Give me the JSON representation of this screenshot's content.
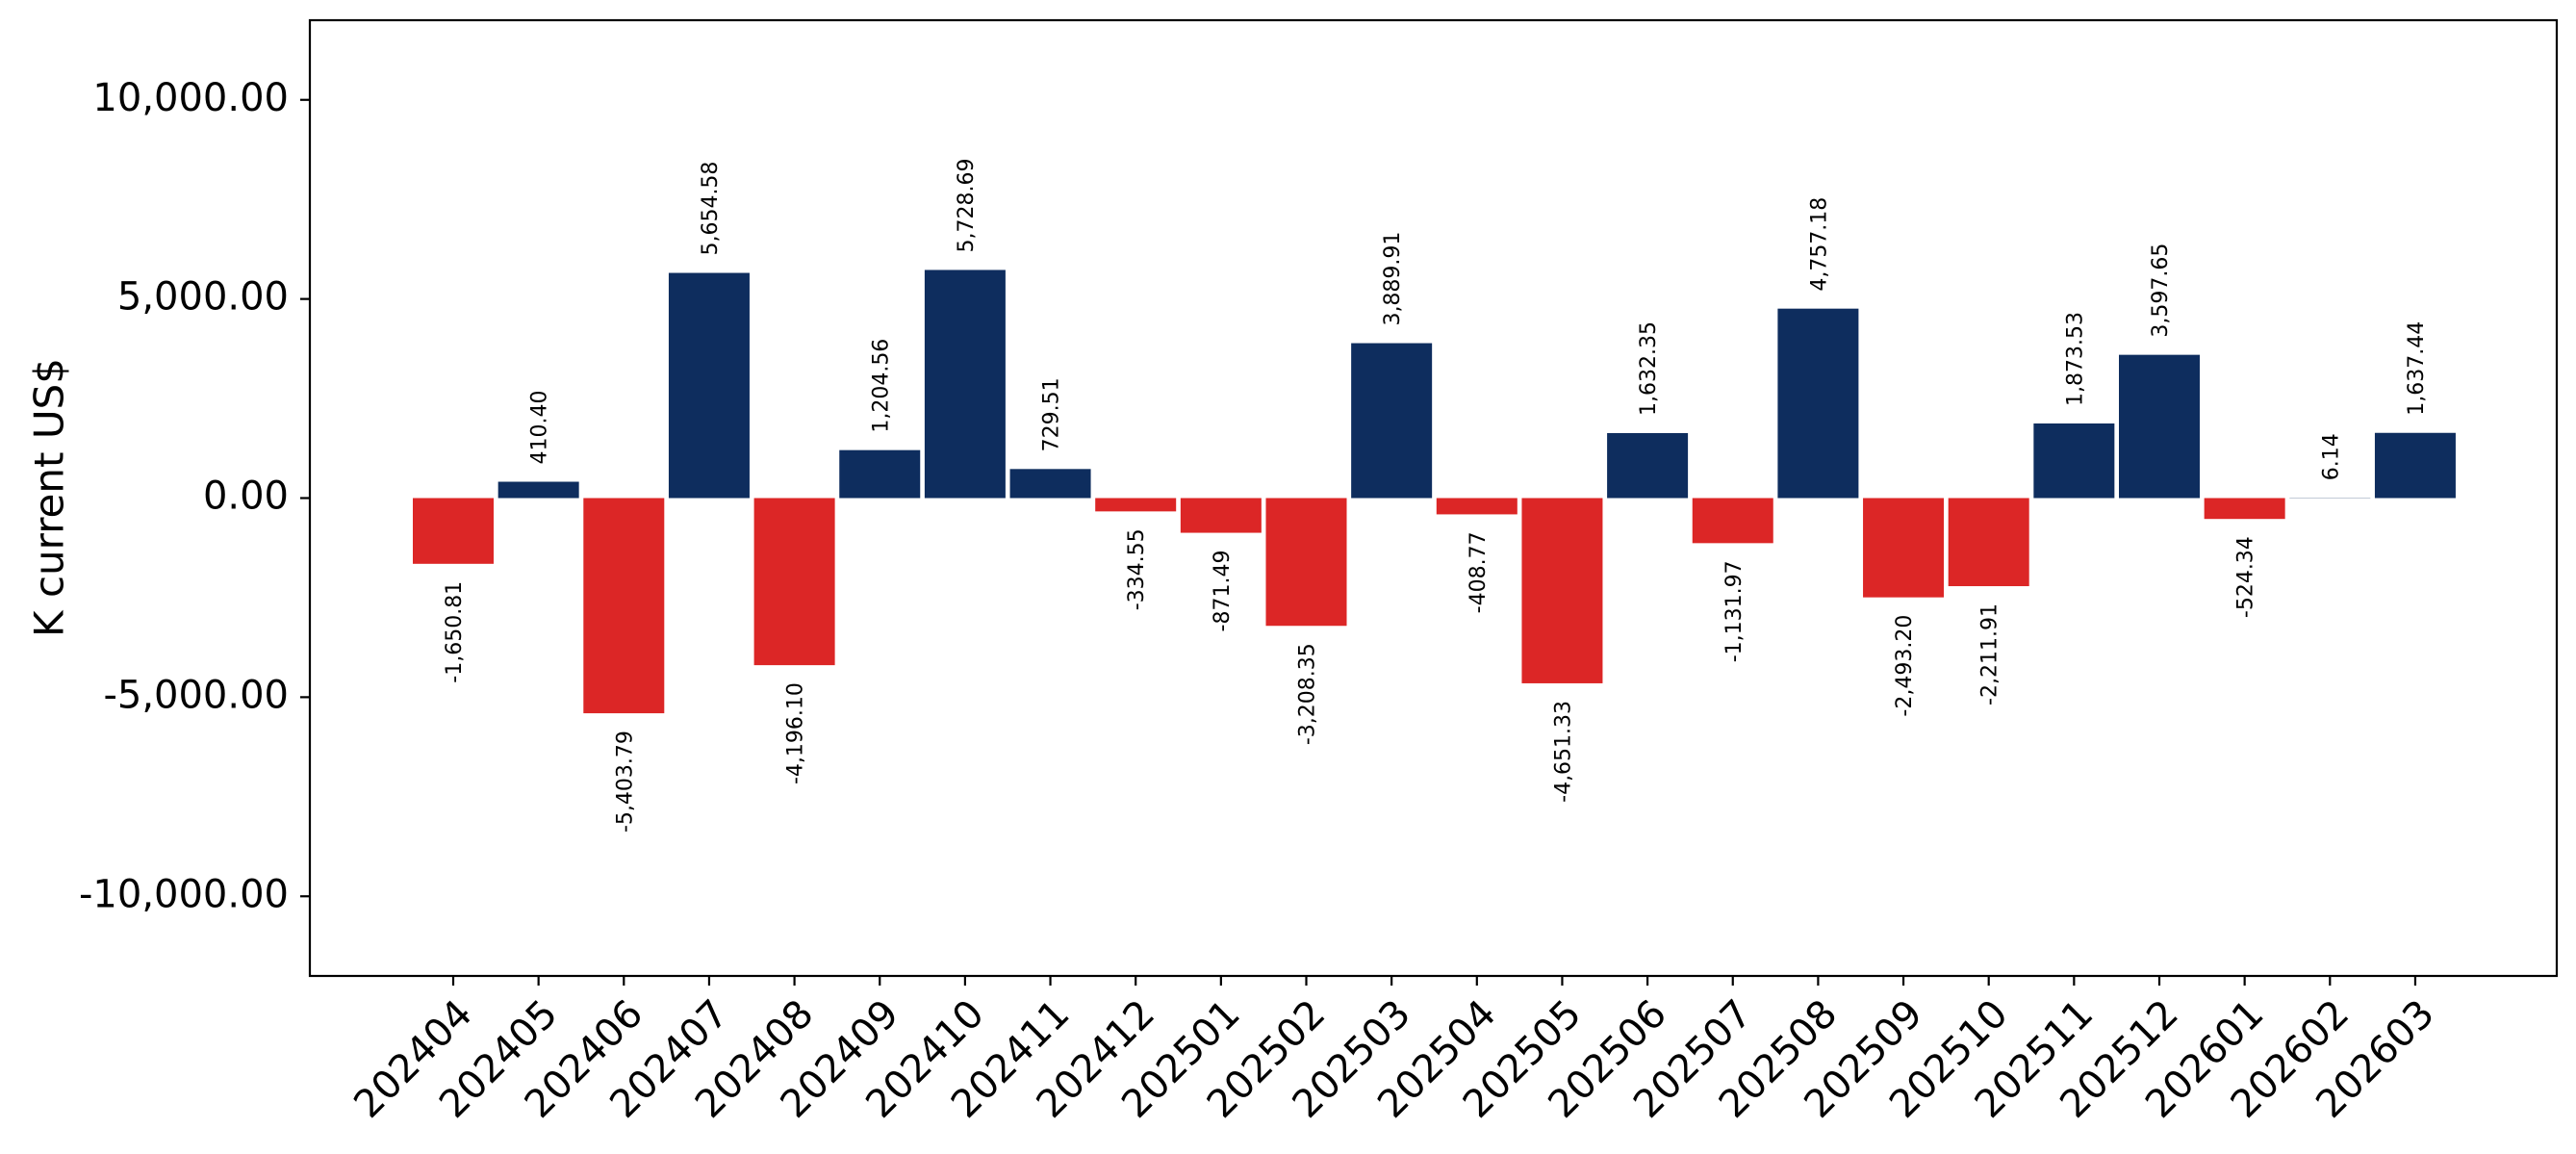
{
  "chart_data": {
    "type": "bar",
    "ylabel": "K current US$",
    "xlabel": "",
    "title": "",
    "ylim": [
      -12000,
      12000
    ],
    "yticks": [
      -10000,
      -5000,
      0,
      5000,
      10000
    ],
    "ytick_labels": [
      "-10,000.00",
      "-5,000.00",
      "0.00",
      "5,000.00",
      "10,000.00"
    ],
    "grid": false,
    "legend": "none",
    "colors": {
      "positive": "#0e2d5e",
      "negative": "#dc2626"
    },
    "categories": [
      "202404",
      "202405",
      "202406",
      "202407",
      "202408",
      "202409",
      "202410",
      "202411",
      "202412",
      "202501",
      "202502",
      "202503",
      "202504",
      "202505",
      "202506",
      "202507",
      "202508",
      "202509",
      "202510",
      "202511",
      "202512",
      "202601",
      "202602",
      "202603"
    ],
    "values": [
      -1650.81,
      410.4,
      -5403.79,
      5654.58,
      -4196.1,
      1204.56,
      5728.69,
      729.51,
      -334.55,
      -871.49,
      -3208.35,
      3889.91,
      -408.77,
      -4651.33,
      1632.35,
      -1131.97,
      4757.18,
      -2493.2,
      -2211.91,
      1873.53,
      3597.65,
      -524.34,
      6.14,
      1637.44
    ],
    "value_labels": [
      "-1,650.81",
      "410.40",
      "-5,403.79",
      "5,654.58",
      "-4,196.10",
      "1,204.56",
      "5,728.69",
      "729.51",
      "-334.55",
      "-871.49",
      "-3,208.35",
      "3,889.91",
      "-408.77",
      "-4,651.33",
      "1,632.35",
      "-1,131.97",
      "4,757.18",
      "-2,493.20",
      "-2,211.91",
      "1,873.53",
      "3,597.65",
      "-524.34",
      "6.14",
      "1,637.44"
    ]
  }
}
